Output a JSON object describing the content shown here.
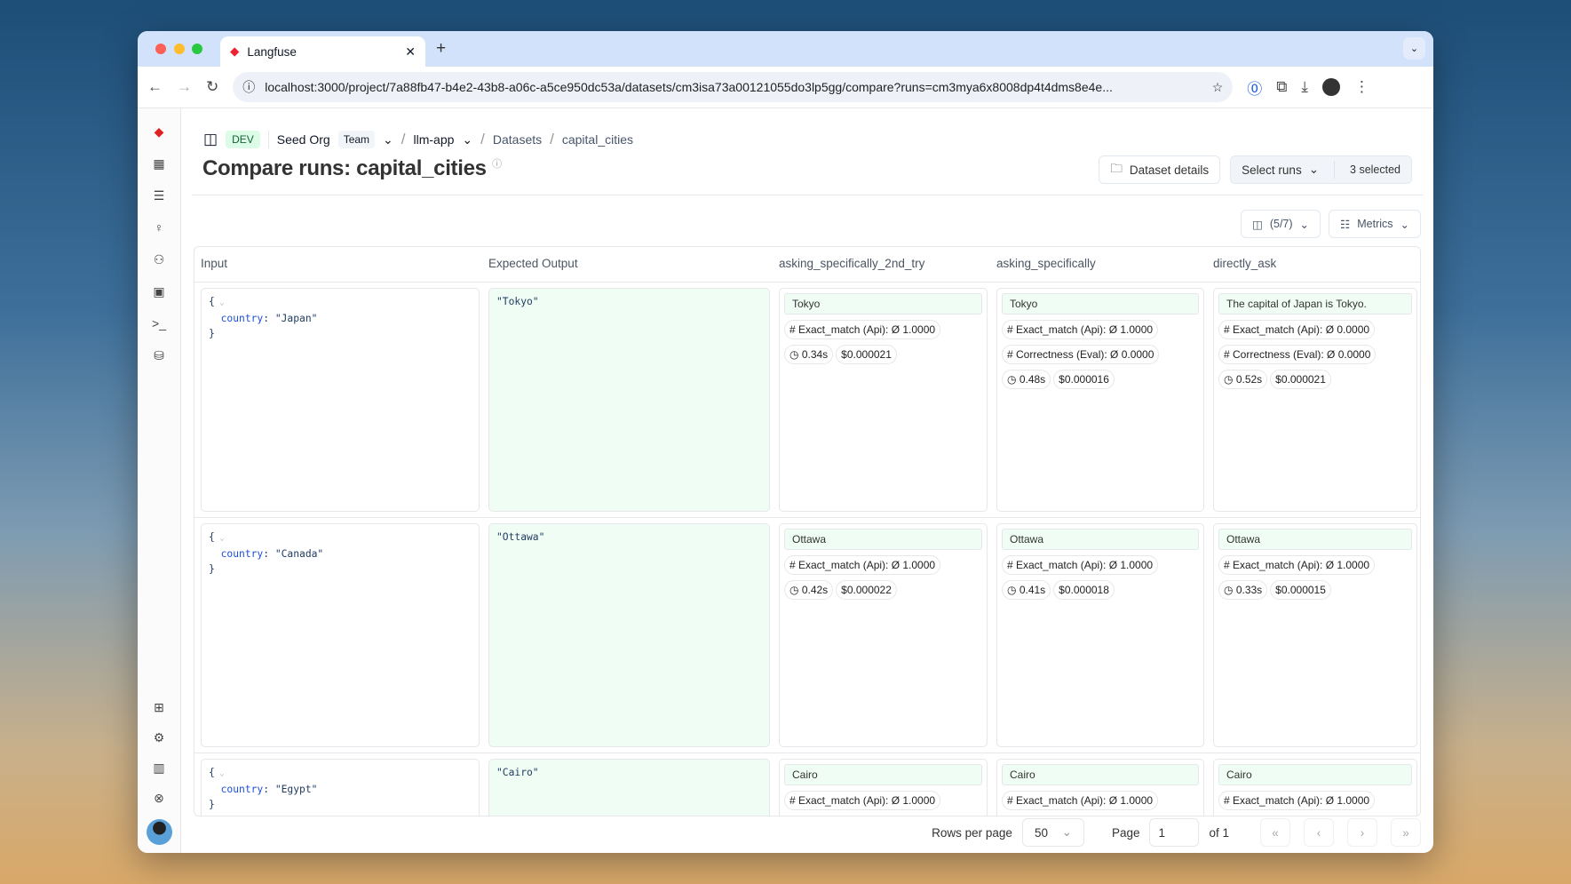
{
  "browser": {
    "tab_title": "Langfuse",
    "url": "localhost:3000/project/7a88fb47-b4e2-43b8-a06c-a5ce950dc53a/datasets/cm3isa73a00121055do3lp5gg/compare?runs=cm3mya6x8008dp4t4dms8e4e..."
  },
  "breadcrumb": {
    "env": "DEV",
    "org": "Seed Org",
    "org_badge": "Team",
    "project": "llm-app",
    "section": "Datasets",
    "dataset": "capital_cities"
  },
  "header": {
    "title": "Compare runs: capital_cities",
    "dataset_details": "Dataset details",
    "select_runs": "Select runs",
    "selected": "3 selected"
  },
  "controls": {
    "columns": "(5/7)",
    "metrics": "Metrics"
  },
  "table": {
    "columns": [
      "Input",
      "Expected Output",
      "asking_specifically_2nd_try",
      "asking_specifically",
      "directly_ask"
    ],
    "rows": [
      {
        "country": "\"Japan\"",
        "expected": "\"Tokyo\"",
        "runs": [
          {
            "output": "Tokyo",
            "scores": [
              "# Exact_match (Api): Ø 1.0000"
            ],
            "latency": "0.34s",
            "cost": "$0.000021"
          },
          {
            "output": "Tokyo",
            "scores": [
              "# Exact_match (Api): Ø 1.0000",
              "# Correctness (Eval): Ø 0.0000"
            ],
            "latency": "0.48s",
            "cost": "$0.000016"
          },
          {
            "output": "The capital of Japan is Tokyo.",
            "scores": [
              "# Exact_match (Api): Ø 0.0000",
              "# Correctness (Eval): Ø 0.0000"
            ],
            "latency": "0.52s",
            "cost": "$0.000021"
          }
        ]
      },
      {
        "country": "\"Canada\"",
        "expected": "\"Ottawa\"",
        "runs": [
          {
            "output": "Ottawa",
            "scores": [
              "# Exact_match (Api): Ø 1.0000"
            ],
            "latency": "0.42s",
            "cost": "$0.000022"
          },
          {
            "output": "Ottawa",
            "scores": [
              "# Exact_match (Api): Ø 1.0000"
            ],
            "latency": "0.41s",
            "cost": "$0.000018"
          },
          {
            "output": "Ottawa",
            "scores": [
              "# Exact_match (Api): Ø 1.0000"
            ],
            "latency": "0.33s",
            "cost": "$0.000015"
          }
        ]
      },
      {
        "country": "\"Egypt\"",
        "expected": "\"Cairo\"",
        "runs": [
          {
            "output": "Cairo",
            "scores": [
              "# Exact_match (Api): Ø 1.0000"
            ]
          },
          {
            "output": "Cairo",
            "scores": [
              "# Exact_match (Api): Ø 1.0000"
            ]
          },
          {
            "output": "Cairo",
            "scores": [
              "# Exact_match (Api): Ø 1.0000"
            ]
          }
        ]
      }
    ]
  },
  "pagination": {
    "rows_per_page_label": "Rows per page",
    "rows_per_page": "50",
    "page_label": "Page",
    "page": "1",
    "of": "of 1"
  },
  "json_key": "country"
}
